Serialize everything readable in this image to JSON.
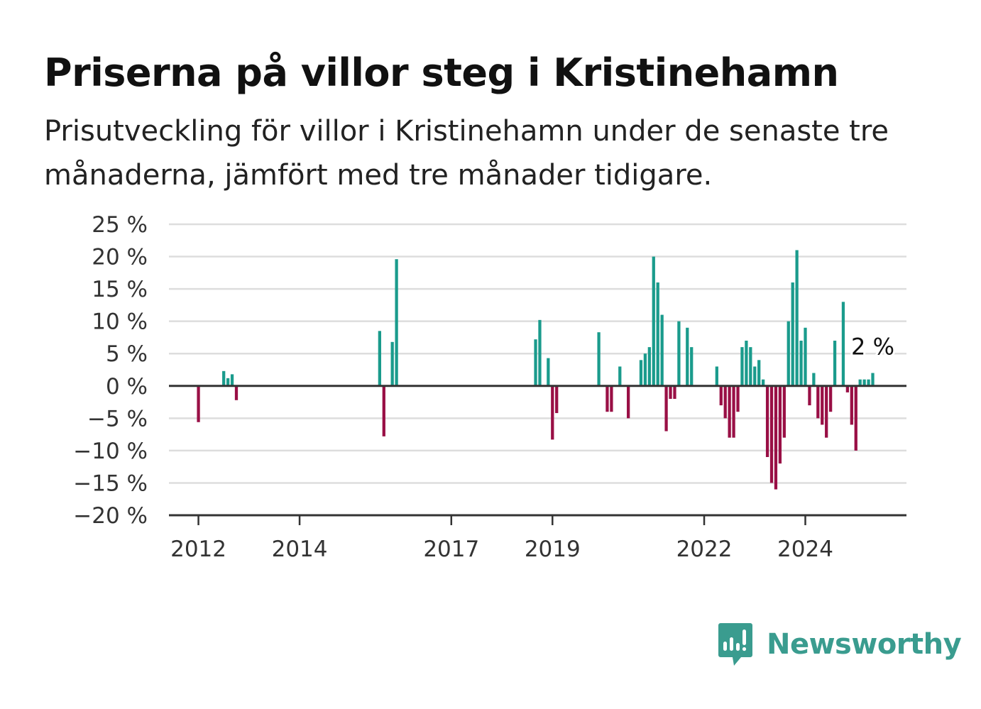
{
  "chart_data": {
    "type": "bar",
    "title": "Priserna på villor steg i Kristinehamn",
    "subtitle": "Prisutveckling för villor i Kristinehamn under de senaste tre månaderna, jämfört med tre månader tidigare.",
    "xlabel": "",
    "ylabel": "",
    "ylim": [
      -20,
      25
    ],
    "yticks": [
      -20,
      -15,
      -10,
      -5,
      0,
      5,
      10,
      15,
      20,
      25
    ],
    "ytick_labels": [
      "−20 %",
      "−15 %",
      "−10 %",
      "−5 %",
      "0 %",
      "5 %",
      "10 %",
      "15 %",
      "20 %",
      "25 %"
    ],
    "xlim": [
      "2011-06",
      "2026-01"
    ],
    "xticks": [
      "2012-01",
      "2014-01",
      "2017-01",
      "2019-01",
      "2022-01",
      "2024-01"
    ],
    "xtick_labels": [
      "2012",
      "2014",
      "2017",
      "2019",
      "2022",
      "2024"
    ],
    "grid": true,
    "positive_color": "#1a9b8c",
    "negative_color": "#990f45",
    "annotation": {
      "text": "2 %",
      "date": "2025-05",
      "value": 2
    },
    "bars": [
      {
        "date": "2012-01",
        "value": -5.6
      },
      {
        "date": "2012-07",
        "value": 2.3
      },
      {
        "date": "2012-08",
        "value": 1.2
      },
      {
        "date": "2012-09",
        "value": 1.8
      },
      {
        "date": "2012-10",
        "value": -2.2
      },
      {
        "date": "2015-08",
        "value": 8.5
      },
      {
        "date": "2015-09",
        "value": -7.8
      },
      {
        "date": "2015-11",
        "value": 6.8
      },
      {
        "date": "2015-12",
        "value": 19.6
      },
      {
        "date": "2018-09",
        "value": 7.2
      },
      {
        "date": "2018-10",
        "value": 10.2
      },
      {
        "date": "2018-12",
        "value": 4.3
      },
      {
        "date": "2019-01",
        "value": -8.3
      },
      {
        "date": "2019-02",
        "value": -4.2
      },
      {
        "date": "2019-12",
        "value": 8.3
      },
      {
        "date": "2020-02",
        "value": -4.0
      },
      {
        "date": "2020-03",
        "value": -4.0
      },
      {
        "date": "2020-05",
        "value": 3.0
      },
      {
        "date": "2020-07",
        "value": -5.0
      },
      {
        "date": "2020-10",
        "value": 4.0
      },
      {
        "date": "2020-11",
        "value": 5.0
      },
      {
        "date": "2020-12",
        "value": 6.0
      },
      {
        "date": "2021-01",
        "value": 20.0
      },
      {
        "date": "2021-02",
        "value": 16.0
      },
      {
        "date": "2021-03",
        "value": 11.0
      },
      {
        "date": "2021-04",
        "value": -7.0
      },
      {
        "date": "2021-05",
        "value": -2.0
      },
      {
        "date": "2021-06",
        "value": -2.0
      },
      {
        "date": "2021-07",
        "value": 10.0
      },
      {
        "date": "2021-09",
        "value": 9.0
      },
      {
        "date": "2021-10",
        "value": 6.0
      },
      {
        "date": "2022-04",
        "value": 3.0
      },
      {
        "date": "2022-05",
        "value": -3.0
      },
      {
        "date": "2022-06",
        "value": -5.0
      },
      {
        "date": "2022-07",
        "value": -8.0
      },
      {
        "date": "2022-08",
        "value": -8.0
      },
      {
        "date": "2022-09",
        "value": -4.0
      },
      {
        "date": "2022-10",
        "value": 6.0
      },
      {
        "date": "2022-11",
        "value": 7.0
      },
      {
        "date": "2022-12",
        "value": 6.0
      },
      {
        "date": "2023-01",
        "value": 3.0
      },
      {
        "date": "2023-02",
        "value": 4.0
      },
      {
        "date": "2023-03",
        "value": 1.0
      },
      {
        "date": "2023-04",
        "value": -11.0
      },
      {
        "date": "2023-05",
        "value": -15.0
      },
      {
        "date": "2023-06",
        "value": -16.0
      },
      {
        "date": "2023-07",
        "value": -12.0
      },
      {
        "date": "2023-08",
        "value": -8.0
      },
      {
        "date": "2023-09",
        "value": 10.0
      },
      {
        "date": "2023-10",
        "value": 16.0
      },
      {
        "date": "2023-11",
        "value": 21.0
      },
      {
        "date": "2023-12",
        "value": 7.0
      },
      {
        "date": "2024-01",
        "value": 9.0
      },
      {
        "date": "2024-02",
        "value": -3.0
      },
      {
        "date": "2024-03",
        "value": 2.0
      },
      {
        "date": "2024-04",
        "value": -5.0
      },
      {
        "date": "2024-05",
        "value": -6.0
      },
      {
        "date": "2024-06",
        "value": -8.0
      },
      {
        "date": "2024-07",
        "value": -4.0
      },
      {
        "date": "2024-08",
        "value": 7.0
      },
      {
        "date": "2024-10",
        "value": 13.0
      },
      {
        "date": "2024-11",
        "value": -1.0
      },
      {
        "date": "2024-12",
        "value": -6.0
      },
      {
        "date": "2025-01",
        "value": -10.0
      },
      {
        "date": "2025-02",
        "value": 1.0
      },
      {
        "date": "2025-03",
        "value": 1.0
      },
      {
        "date": "2025-04",
        "value": 1.0
      },
      {
        "date": "2025-05",
        "value": 2.0
      }
    ]
  },
  "brand": {
    "name": "Newsworthy",
    "icon": "newsworthy-logo-icon",
    "color": "#3a9c8f"
  }
}
